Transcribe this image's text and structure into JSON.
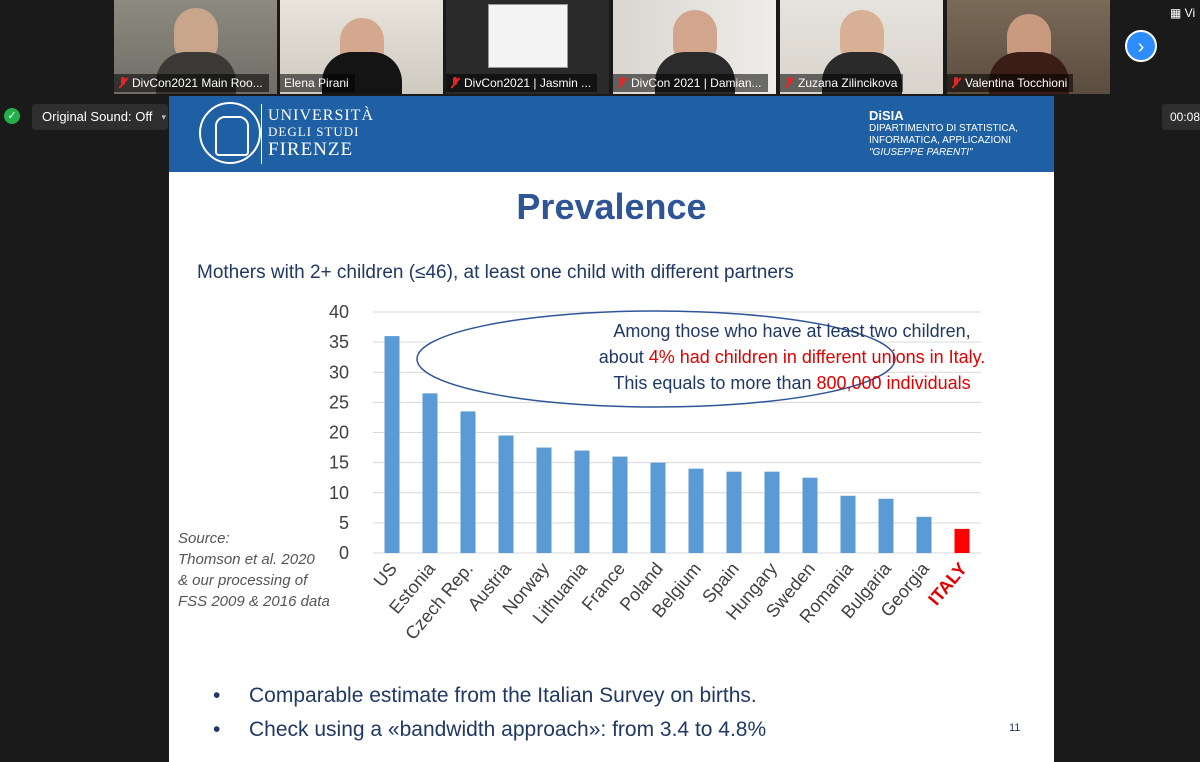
{
  "participants": [
    {
      "name": "DivCon2021 Main Roo...",
      "muted": true
    },
    {
      "name": "Elena Pirani",
      "muted": false
    },
    {
      "name": "DivCon2021 | Jasmin ...",
      "muted": true
    },
    {
      "name": "DivCon 2021 | Damian...",
      "muted": true
    },
    {
      "name": "Zuzana Zilincikova",
      "muted": true
    },
    {
      "name": "Valentina Tocchioni",
      "muted": true
    }
  ],
  "toolbar": {
    "next_icon": "›",
    "view_label": "Vi",
    "original_sound": "Original Sound: Off",
    "timer": "00:08"
  },
  "slide": {
    "uni_line1": "UNIVERSITÀ",
    "uni_line2": "DEGLI STUDI",
    "uni_line3": "FIRENZE",
    "dept_short": "DiSIA",
    "dept_line1": "DIPARTIMENTO DI STATISTICA,",
    "dept_line2": "INFORMATICA, APPLICAZIONI",
    "dept_line3": "\"GIUSEPPE PARENTI\"",
    "title": "Prevalence",
    "subtitle": "Mothers with 2+ children (≤46), at least one child with different partners",
    "note_line1": "Among those who have at least two children,",
    "note_line2_pre": "about ",
    "note_line2_red": "4% had children in different unions in Italy.",
    "note_line3_pre": "This equals to more than ",
    "note_line3_red": "800,000 individuals",
    "source_lines": [
      "Source:",
      "Thomson et al. 2020",
      "& our processing of",
      "FSS 2009 & 2016 data"
    ],
    "bullets": [
      "Comparable estimate from the Italian Survey on births.",
      "Check using a «bandwidth approach»: from 3.4 to 4.8%"
    ],
    "slide_number": "11"
  },
  "chart_data": {
    "type": "bar",
    "title": "",
    "xlabel": "",
    "ylabel": "",
    "categories": [
      "US",
      "Estonia",
      "Czech Rep.",
      "Austria",
      "Norway",
      "Lithuania",
      "France",
      "Poland",
      "Belgium",
      "Spain",
      "Hungary",
      "Sweden",
      "Romania",
      "Bulgaria",
      "Georgia",
      "ITALY"
    ],
    "values": [
      36,
      26.5,
      23.5,
      19.5,
      17.5,
      17,
      16,
      15,
      14,
      13.5,
      13.5,
      12.5,
      9.5,
      9,
      6,
      4
    ],
    "ylim": [
      0,
      40
    ],
    "yticks": [
      0,
      5,
      10,
      15,
      20,
      25,
      30,
      35,
      40
    ],
    "grid": true,
    "colors": {
      "default": "#5b9bd5",
      "highlight": "#ff0000"
    },
    "highlight": "ITALY"
  }
}
